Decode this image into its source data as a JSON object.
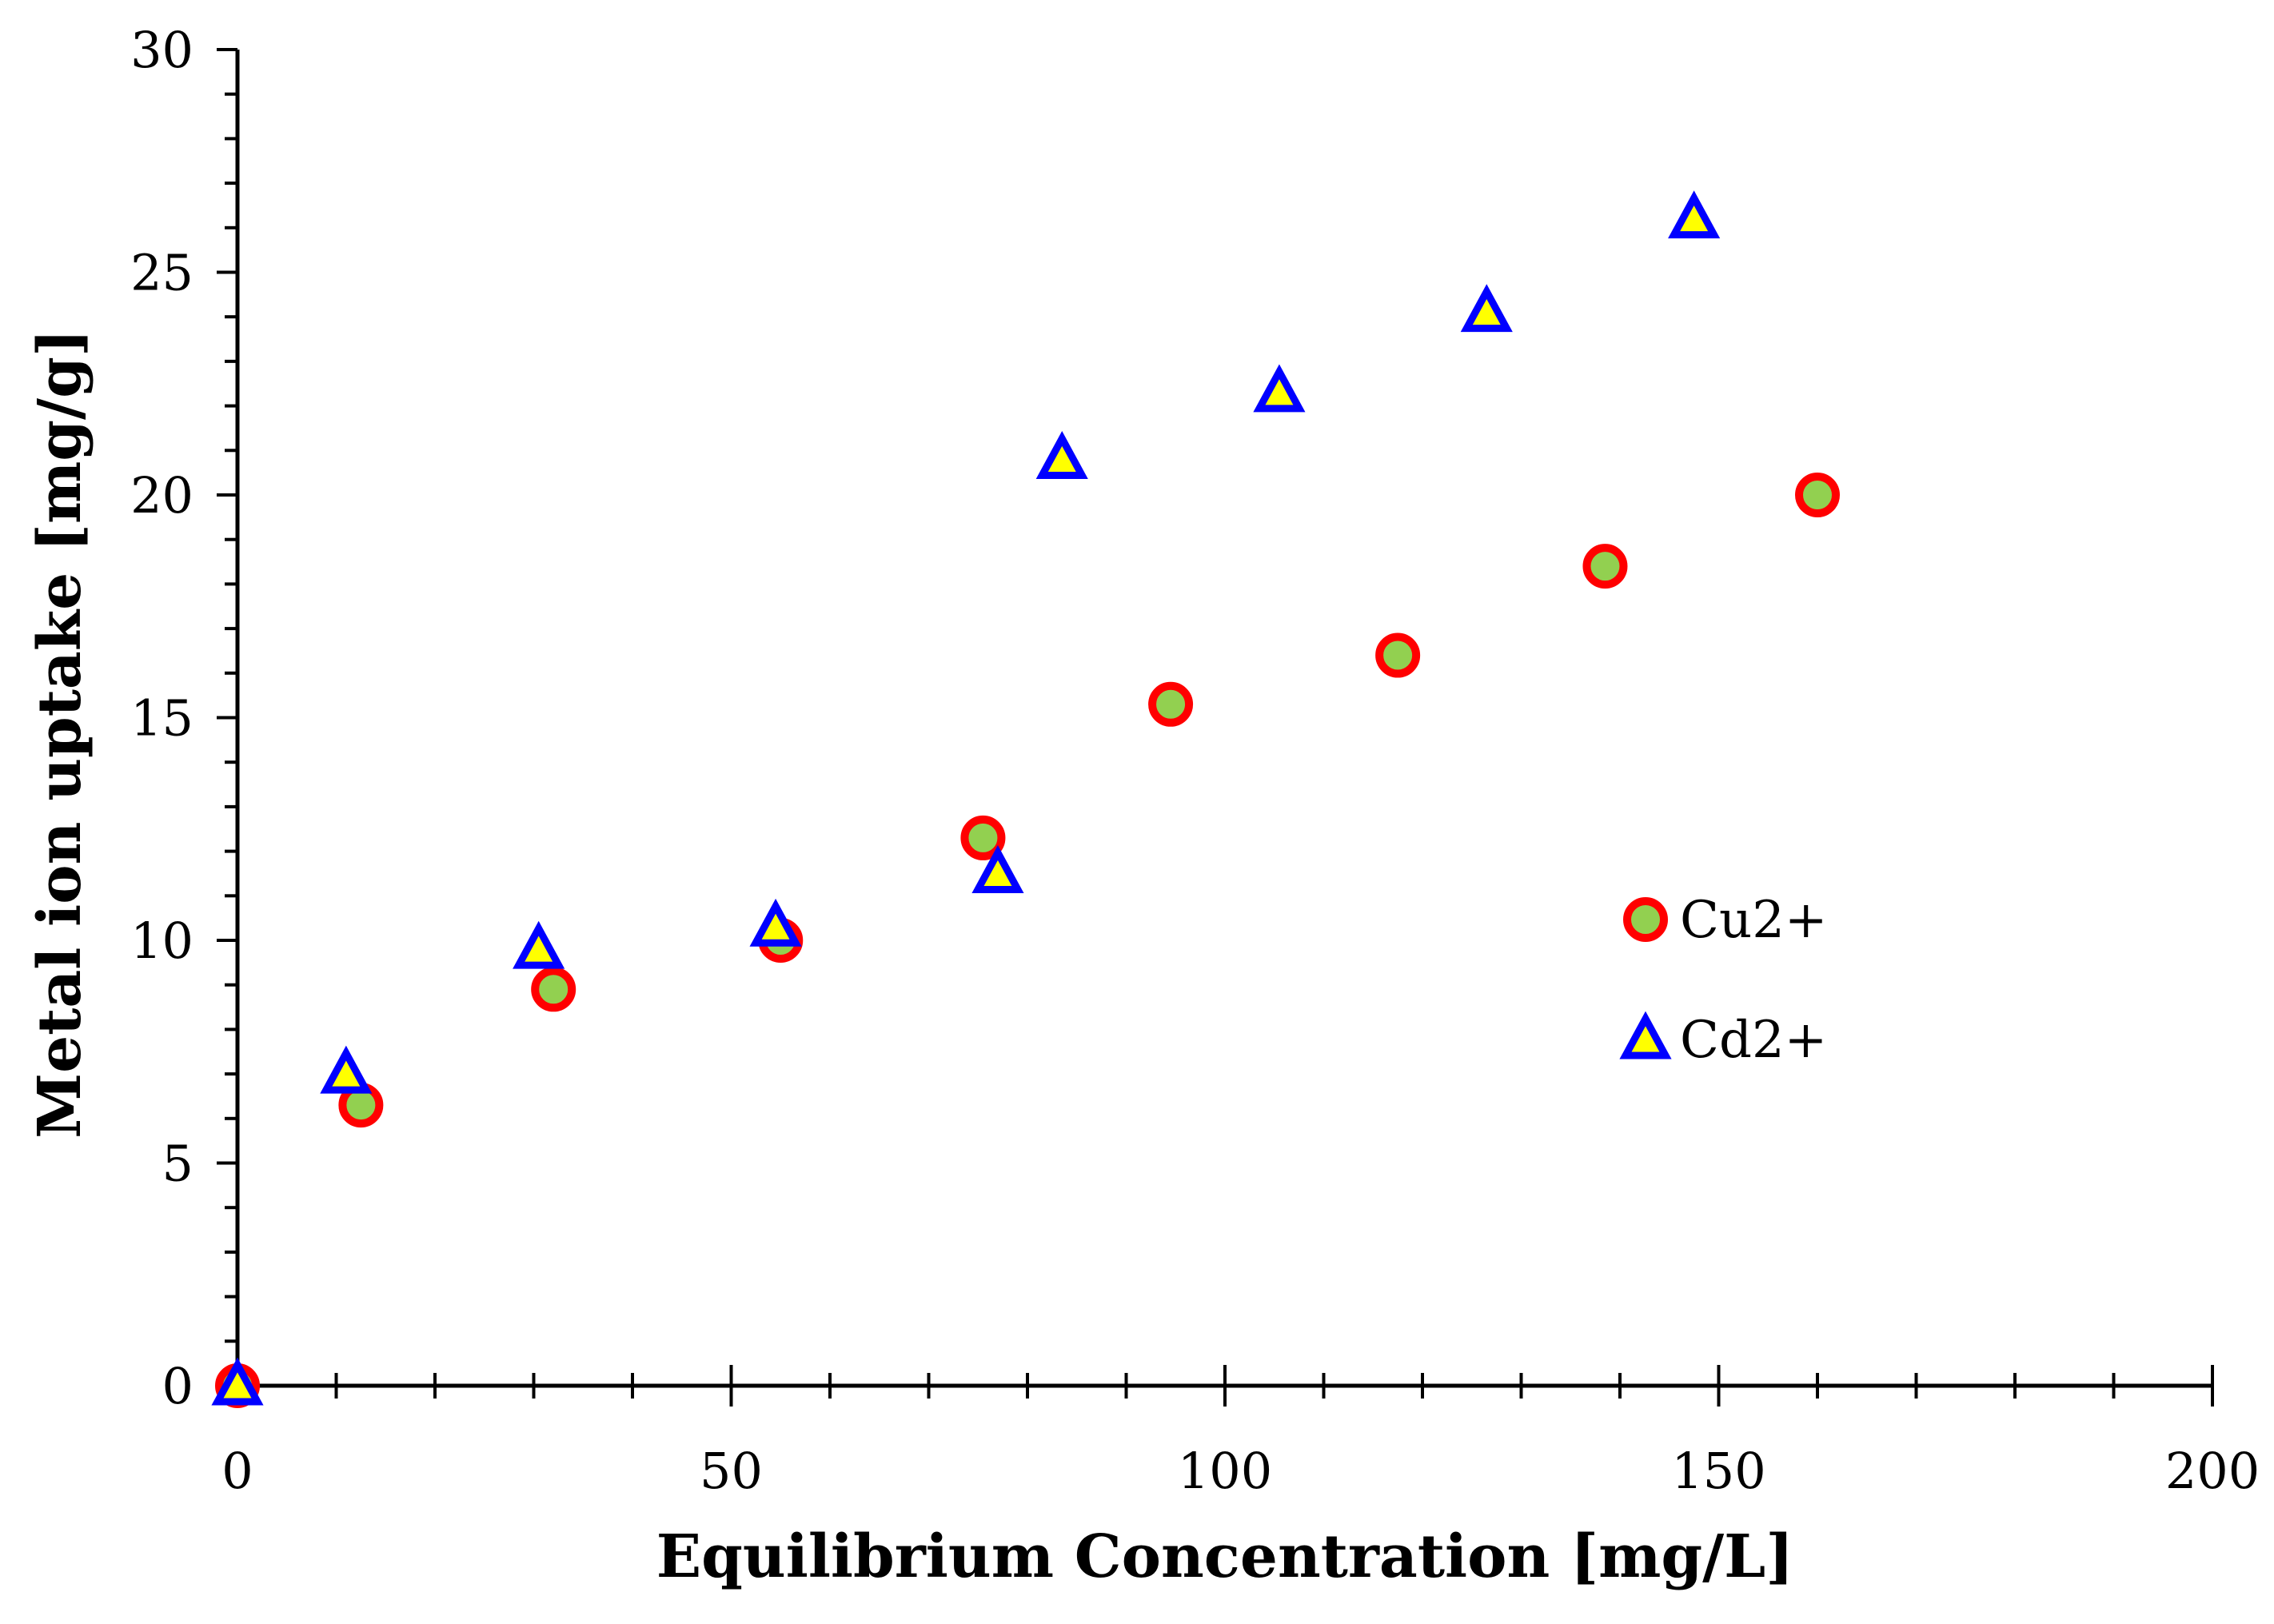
{
  "chart_data": {
    "type": "scatter",
    "title": "",
    "xlabel": "Equilibrium Concentration [mg/L]",
    "ylabel": "Metal ion uptake [mg/g]",
    "xlim": [
      0,
      200
    ],
    "ylim": [
      0,
      30
    ],
    "x_major_step": 50,
    "x_minor_step": 10,
    "y_major_step": 5,
    "y_minor_step": 1,
    "x_ticks": [
      "0",
      "50",
      "100",
      "150",
      "200"
    ],
    "y_ticks": [
      "0",
      "5",
      "10",
      "15",
      "20",
      "25",
      "30"
    ],
    "grid": false,
    "legend_position": "right-middle",
    "series": [
      {
        "name": "Cu2+",
        "marker": "circle",
        "fill_color": "#92D050",
        "edge_color": "#FF0000",
        "points": [
          {
            "x": 0,
            "y": 0
          },
          {
            "x": 12.5,
            "y": 6.3
          },
          {
            "x": 32,
            "y": 8.9
          },
          {
            "x": 55,
            "y": 10.0
          },
          {
            "x": 75.5,
            "y": 12.3
          },
          {
            "x": 94.5,
            "y": 15.3
          },
          {
            "x": 117.5,
            "y": 16.4
          },
          {
            "x": 138.5,
            "y": 18.4
          },
          {
            "x": 160,
            "y": 20.0
          }
        ]
      },
      {
        "name": "Cd2+",
        "marker": "triangle",
        "fill_color": "#FFFF00",
        "edge_color": "#0000FF",
        "points": [
          {
            "x": 0,
            "y": 0
          },
          {
            "x": 11,
            "y": 7.0
          },
          {
            "x": 30.5,
            "y": 9.8
          },
          {
            "x": 54.5,
            "y": 10.3
          },
          {
            "x": 77,
            "y": 11.5
          },
          {
            "x": 83.5,
            "y": 20.8
          },
          {
            "x": 105.5,
            "y": 22.3
          },
          {
            "x": 126.5,
            "y": 24.1
          },
          {
            "x": 147.5,
            "y": 26.2
          }
        ]
      }
    ]
  }
}
